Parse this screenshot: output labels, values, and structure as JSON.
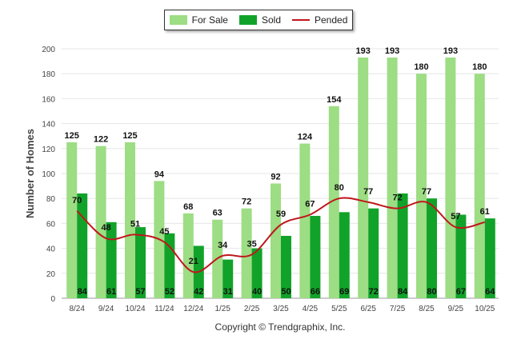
{
  "chart_data": {
    "type": "bar",
    "title": "",
    "xlabel": "",
    "ylabel": "Number of Homes",
    "ylim": [
      0,
      200
    ],
    "ytick_step": 20,
    "grid": true,
    "legend_position": "top-center",
    "categories": [
      "8/24",
      "9/24",
      "10/24",
      "11/24",
      "12/24",
      "1/25",
      "2/25",
      "3/25",
      "4/25",
      "5/25",
      "6/25",
      "7/25",
      "8/25",
      "9/25",
      "10/25"
    ],
    "series": [
      {
        "name": "For Sale",
        "kind": "bar",
        "color": "#9ddd84",
        "values": [
          125,
          122,
          125,
          94,
          68,
          63,
          72,
          92,
          124,
          154,
          193,
          193,
          180,
          193,
          180
        ]
      },
      {
        "name": "Sold",
        "kind": "bar",
        "color": "#11a329",
        "values": [
          84,
          61,
          57,
          52,
          42,
          31,
          40,
          50,
          66,
          69,
          72,
          84,
          80,
          67,
          64
        ]
      },
      {
        "name": "Pended",
        "kind": "line",
        "color": "#c0161c",
        "values": [
          70,
          48,
          51,
          45,
          21,
          34,
          35,
          59,
          67,
          80,
          77,
          72,
          77,
          57,
          61
        ]
      }
    ]
  },
  "copyright": "Copyright © Trendgraphix, Inc."
}
